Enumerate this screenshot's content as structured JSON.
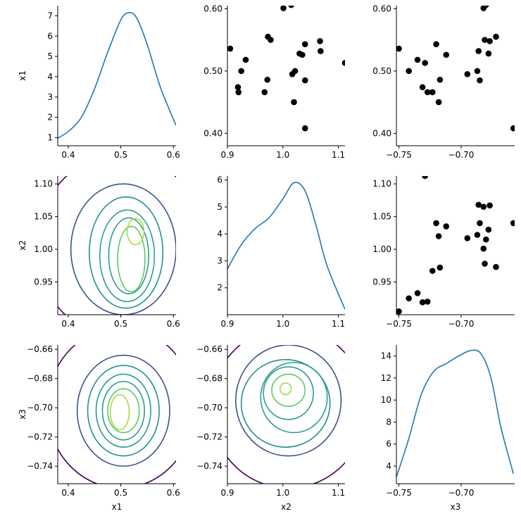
{
  "chart_data": {
    "type": "pairplot",
    "variables": [
      "x1",
      "x2",
      "x3"
    ],
    "colors": {
      "kde_line": "#1f77b4",
      "scatter": "#000000",
      "contour_levels": [
        "#440154",
        "#3b528b",
        "#21918c",
        "#2a9d8f",
        "#5ec962",
        "#a6d940"
      ]
    },
    "ranges": {
      "x1": [
        0.38,
        0.605
      ],
      "x2": [
        0.9,
        1.112
      ],
      "x3": [
        -0.752,
        -0.657
      ]
    },
    "ticks": {
      "x1": [
        0.4,
        0.5,
        0.6
      ],
      "x2": [
        0.9,
        1.0,
        1.1
      ],
      "x3": [
        -0.75,
        -0.7
      ]
    },
    "x2_row_ticks": [
      0.95,
      1.0,
      1.05,
      1.1
    ],
    "x3_row_ticks": [
      -0.74,
      -0.72,
      -0.7,
      -0.68,
      -0.66
    ],
    "samples": [
      {
        "x1": 0.536,
        "x2": 0.905,
        "x3": -0.75
      },
      {
        "x1": 0.474,
        "x2": 0.919,
        "x3": -0.731
      },
      {
        "x1": 0.466,
        "x2": 0.92,
        "x3": -0.727
      },
      {
        "x1": 0.5,
        "x2": 0.925,
        "x3": -0.742
      },
      {
        "x1": 0.518,
        "x2": 0.933,
        "x3": -0.735
      },
      {
        "x1": 0.466,
        "x2": 0.967,
        "x3": -0.723
      },
      {
        "x1": 0.486,
        "x2": 0.972,
        "x3": -0.717
      },
      {
        "x1": 0.555,
        "x2": 0.973,
        "x3": -0.672
      },
      {
        "x1": 0.55,
        "x2": 0.978,
        "x3": -0.681
      },
      {
        "x1": 0.601,
        "x2": 1.001,
        "x3": -0.682
      },
      {
        "x1": 0.606,
        "x2": 1.015,
        "x3": -0.68
      },
      {
        "x1": 0.495,
        "x2": 1.017,
        "x3": -0.695
      },
      {
        "x1": 0.45,
        "x2": 1.02,
        "x3": -0.718
      },
      {
        "x1": 0.5,
        "x2": 1.022,
        "x3": -0.687
      },
      {
        "x1": 0.528,
        "x2": 1.03,
        "x3": -0.678
      },
      {
        "x1": 0.526,
        "x2": 1.035,
        "x3": -0.712
      },
      {
        "x1": 0.543,
        "x2": 1.04,
        "x3": -0.72
      },
      {
        "x1": 0.485,
        "x2": 1.04,
        "x3": -0.685
      },
      {
        "x1": 0.408,
        "x2": 1.04,
        "x3": -0.658
      },
      {
        "x1": 0.374,
        "x2": 1.065,
        "x3": -0.682
      },
      {
        "x1": 0.532,
        "x2": 1.068,
        "x3": -0.686
      },
      {
        "x1": 0.548,
        "x2": 1.067,
        "x3": -0.677
      },
      {
        "x1": 0.513,
        "x2": 1.112,
        "x3": -0.729
      }
    ],
    "kde_x1": {
      "x": [
        0.375,
        0.4,
        0.425,
        0.45,
        0.475,
        0.5,
        0.515,
        0.53,
        0.55,
        0.575,
        0.605
      ],
      "y": [
        0.9,
        1.3,
        2.0,
        3.4,
        5.2,
        6.8,
        7.15,
        6.9,
        5.6,
        3.5,
        1.6
      ]
    },
    "kde_x2": {
      "x": [
        0.9,
        0.925,
        0.95,
        0.975,
        1.0,
        1.02,
        1.04,
        1.06,
        1.08,
        1.112
      ],
      "y": [
        2.7,
        3.6,
        4.2,
        4.6,
        5.3,
        5.9,
        5.6,
        4.3,
        2.8,
        1.2
      ]
    },
    "kde_x3": {
      "x": [
        -0.752,
        -0.742,
        -0.732,
        -0.722,
        -0.712,
        -0.702,
        -0.692,
        -0.684,
        -0.676,
        -0.668,
        -0.658
      ],
      "y": [
        3.0,
        6.5,
        10.5,
        12.6,
        13.3,
        14.0,
        14.5,
        14.2,
        12.0,
        7.5,
        3.3
      ]
    },
    "kde_ylim": {
      "x1": [
        0.6,
        7.5
      ],
      "x2": [
        1.0,
        6.15
      ],
      "x3": [
        2.4,
        15.0
      ]
    },
    "kde_ticks": {
      "x1": [
        1,
        2,
        3,
        4,
        5,
        6,
        7
      ],
      "x2": [
        2,
        3,
        4,
        5,
        6
      ],
      "x3": [
        4,
        6,
        8,
        10,
        12,
        14
      ]
    },
    "contours": {
      "x1_x2": {
        "x": "x1",
        "y": "x2",
        "rings": [
          {
            "level": 0,
            "cx": 0.5,
            "cy": 1.005,
            "rx": 0.16,
            "ry": 0.14,
            "open": true
          },
          {
            "level": 1,
            "cx": 0.505,
            "cy": 1.0,
            "rx": 0.1,
            "ry": 0.1
          },
          {
            "level": 2,
            "cx": 0.51,
            "cy": 0.995,
            "rx": 0.07,
            "ry": 0.085
          },
          {
            "level": 3,
            "cx": 0.512,
            "cy": 0.99,
            "rx": 0.052,
            "ry": 0.07
          },
          {
            "level": 3,
            "cx": 0.515,
            "cy": 0.99,
            "rx": 0.038,
            "ry": 0.058
          },
          {
            "level": 4,
            "cx": 0.52,
            "cy": 0.985,
            "rx": 0.026,
            "ry": 0.05
          },
          {
            "level": 5,
            "cx": 0.528,
            "cy": 1.027,
            "rx": 0.016,
            "ry": 0.02
          }
        ]
      },
      "x1_x3": {
        "x": "x1",
        "y": "x3",
        "rings": [
          {
            "level": 0,
            "cx": 0.5,
            "cy": -0.7,
            "rx": 0.14,
            "ry": 0.055,
            "open": true
          },
          {
            "level": 1,
            "cx": 0.505,
            "cy": -0.702,
            "rx": 0.088,
            "ry": 0.038
          },
          {
            "level": 2,
            "cx": 0.505,
            "cy": -0.702,
            "rx": 0.068,
            "ry": 0.031
          },
          {
            "level": 3,
            "cx": 0.505,
            "cy": -0.702,
            "rx": 0.052,
            "ry": 0.025
          },
          {
            "level": 3,
            "cx": 0.505,
            "cy": -0.702,
            "rx": 0.04,
            "ry": 0.02
          },
          {
            "level": 4,
            "cx": 0.505,
            "cy": -0.702,
            "rx": 0.03,
            "ry": 0.015
          },
          {
            "level": 5,
            "cx": 0.498,
            "cy": -0.703,
            "rx": 0.018,
            "ry": 0.012
          }
        ]
      },
      "x2_x3": {
        "x": "x2",
        "y": "x3",
        "rings": [
          {
            "level": 0,
            "cx": 1.01,
            "cy": -0.7,
            "rx": 0.14,
            "ry": 0.055,
            "open": true
          },
          {
            "level": 1,
            "cx": 1.01,
            "cy": -0.695,
            "rx": 0.095,
            "ry": 0.038
          },
          {
            "level": 2,
            "cx": 1.005,
            "cy": -0.697,
            "rx": 0.08,
            "ry": 0.03
          },
          {
            "level": 3,
            "cx": 1.02,
            "cy": -0.693,
            "rx": 0.06,
            "ry": 0.024
          },
          {
            "level": 3,
            "cx": 1.01,
            "cy": -0.69,
            "rx": 0.045,
            "ry": 0.018
          },
          {
            "level": 4,
            "cx": 1.01,
            "cy": -0.688,
            "rx": 0.03,
            "ry": 0.011
          },
          {
            "level": 5,
            "cx": 1.005,
            "cy": -0.687,
            "rx": 0.01,
            "ry": 0.004
          }
        ]
      }
    }
  }
}
